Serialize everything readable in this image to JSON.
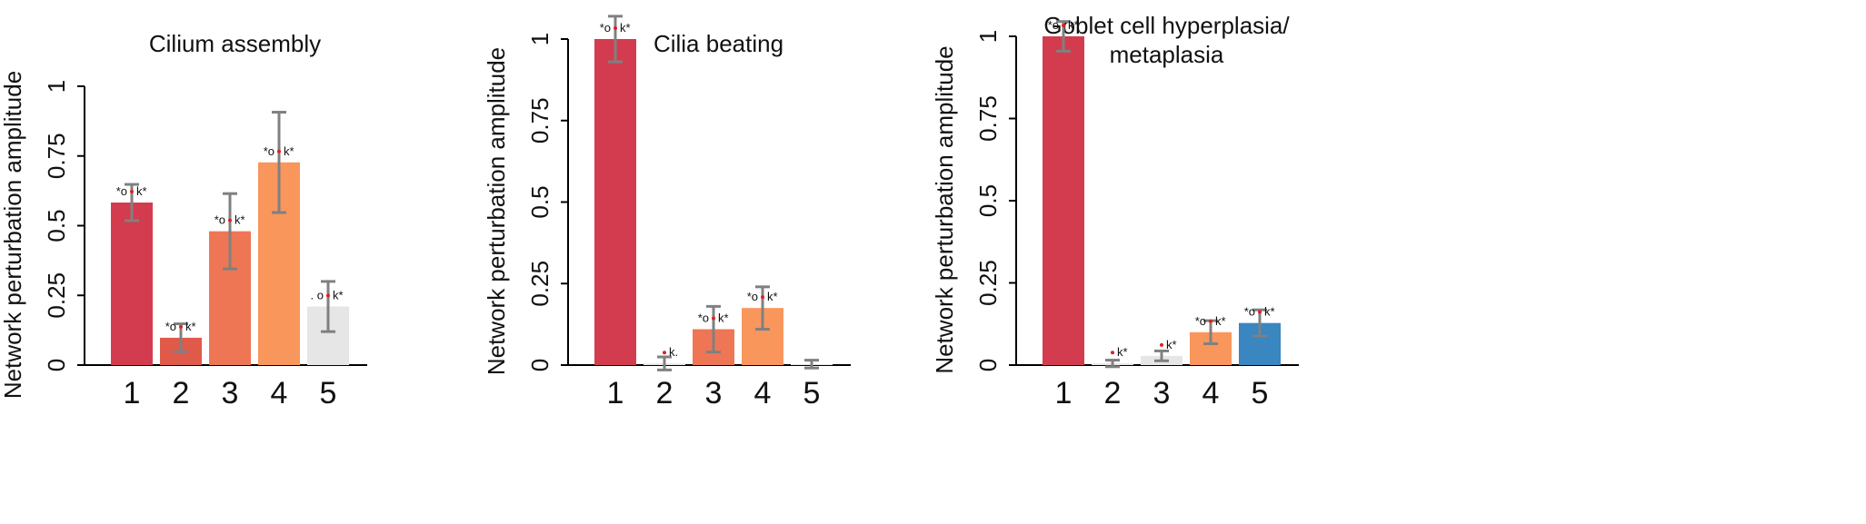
{
  "chart_data": [
    {
      "type": "bar",
      "title": [
        "Cilium assembly"
      ],
      "ylabel": "Network perturbation amplitude",
      "categories": [
        "1",
        "2",
        "3",
        "4",
        "5"
      ],
      "values": [
        0.583,
        0.098,
        0.48,
        0.727,
        0.21
      ],
      "errors": [
        0.065,
        0.05,
        0.135,
        0.18,
        0.09
      ],
      "colors": [
        "#d33c4e",
        "#e05a4a",
        "#ef7655",
        "#f9965c",
        "#e6e6e6"
      ],
      "markers": [
        {
          "left": "*o",
          "right": "k*"
        },
        {
          "left": "*o",
          "right": "k*"
        },
        {
          "left": "*o",
          "right": "k*"
        },
        {
          "left": "*o",
          "right": "k*"
        },
        {
          "left": ". o",
          "right": "k*",
          "muted": true
        }
      ],
      "ylim": [
        0,
        1
      ],
      "yticks": [
        0,
        0.25,
        0.5,
        0.75,
        1
      ]
    },
    {
      "type": "bar",
      "title": [
        "Cilia beating"
      ],
      "ylabel": "Network perturbation amplitude",
      "categories": [
        "1",
        "2",
        "3",
        "4",
        "5"
      ],
      "values": [
        1,
        0.005,
        0.11,
        0.175,
        0.003
      ],
      "errors": [
        0.07,
        0.02,
        0.07,
        0.065,
        0.012
      ],
      "colors": [
        "#d33c4e",
        "#e6e6e6",
        "#ef7655",
        "#f9965c",
        "#e6e6e6"
      ],
      "markers": [
        {
          "left": "*o",
          "right": "k*"
        },
        {
          "right": "k.",
          "muted": true
        },
        {
          "left": "*o",
          "right": "k*"
        },
        {
          "left": "*o",
          "right": "k*"
        },
        null
      ],
      "ylim": [
        0,
        1
      ],
      "yticks": [
        0,
        0.25,
        0.5,
        0.75,
        1
      ]
    },
    {
      "type": "bar",
      "title": [
        "Goblet cell hyperplasia/",
        "metaplasia"
      ],
      "ylabel": "Network perturbation amplitude",
      "categories": [
        "1",
        "2",
        "3",
        "4",
        "5"
      ],
      "values": [
        1,
        0.005,
        0.028,
        0.1,
        0.128
      ],
      "errors": [
        0.045,
        0.01,
        0.015,
        0.035,
        0.04
      ],
      "colors": [
        "#d33c4e",
        "#e6e6e6",
        "#e6e6e6",
        "#f9965c",
        "#3a86c0"
      ],
      "markers": [
        {
          "left": "*o",
          "right": "k*"
        },
        {
          "right": "k*"
        },
        {
          "right": "k*"
        },
        {
          "left": "*o",
          "right": "k*"
        },
        {
          "left": "*o",
          "right": "k*"
        }
      ],
      "ylim": [
        0,
        1
      ],
      "yticks": [
        0,
        0.25,
        0.5,
        0.75,
        1
      ]
    }
  ]
}
